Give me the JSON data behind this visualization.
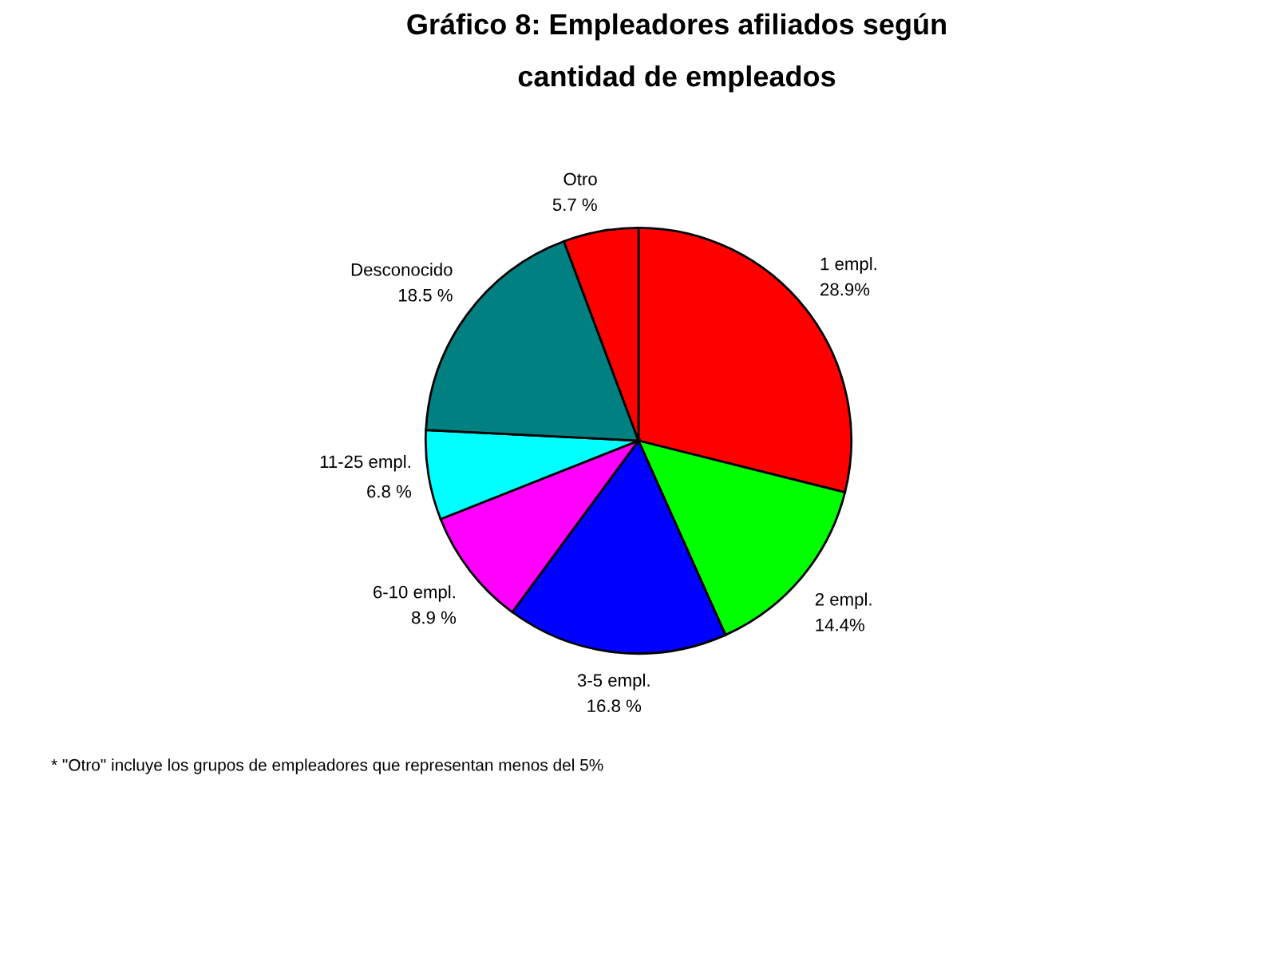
{
  "chart_data": {
    "type": "pie",
    "title": "Gráfico 8: Empleadores afiliados según\ncantidad de empleados",
    "categories": [
      "1 empl.",
      "2 empl.",
      "3-5 empl.",
      "6-10 empl.",
      "11-25 empl.",
      "Desconocido",
      "Otro"
    ],
    "values": [
      28.9,
      14.4,
      16.8,
      8.9,
      6.8,
      18.5,
      5.7
    ],
    "value_labels": [
      "28.9%",
      "14.4%",
      "16.8 %",
      "8.9 %",
      "6.8 %",
      "18.5 %",
      "5.7 %"
    ],
    "colors": [
      "#ff0000",
      "#00ff00",
      "#0000ff",
      "#ff00ff",
      "#00ffff",
      "#008080",
      "#ff0000"
    ],
    "annotations": [
      "* \"Otro\" incluye los grupos de empleadores que representan menos del 5%"
    ]
  }
}
